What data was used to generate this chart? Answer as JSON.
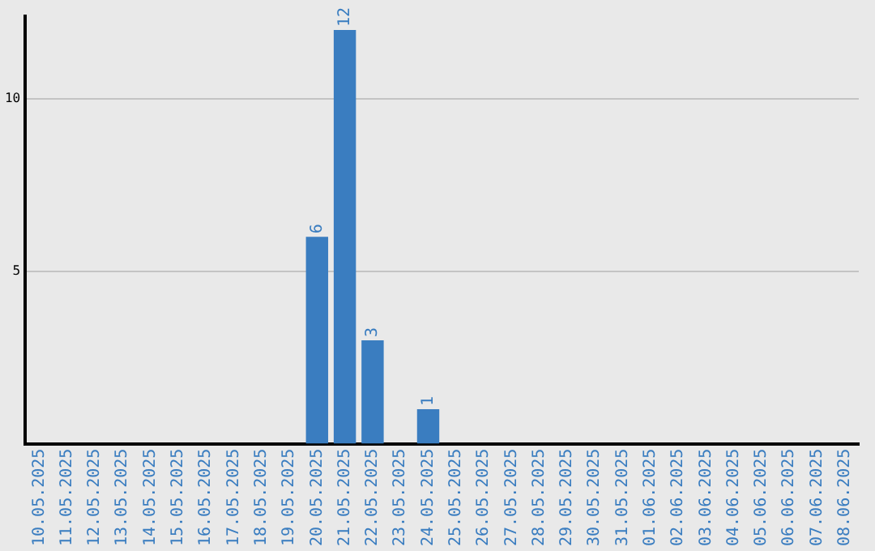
{
  "chart_data": {
    "type": "bar",
    "categories": [
      "10.05.2025",
      "11.05.2025",
      "12.05.2025",
      "13.05.2025",
      "14.05.2025",
      "15.05.2025",
      "16.05.2025",
      "17.05.2025",
      "18.05.2025",
      "19.05.2025",
      "20.05.2025",
      "21.05.2025",
      "22.05.2025",
      "23.05.2025",
      "24.05.2025",
      "25.05.2025",
      "26.05.2025",
      "27.05.2025",
      "28.05.2025",
      "29.05.2025",
      "30.05.2025",
      "31.05.2025",
      "01.06.2025",
      "02.06.2025",
      "03.06.2025",
      "04.06.2025",
      "05.06.2025",
      "06.06.2025",
      "07.06.2025",
      "08.06.2025"
    ],
    "values": [
      0,
      0,
      0,
      0,
      0,
      0,
      0,
      0,
      0,
      0,
      6,
      12,
      3,
      0,
      1,
      0,
      0,
      0,
      0,
      0,
      0,
      0,
      0,
      0,
      0,
      0,
      0,
      0,
      0,
      0
    ],
    "value_labels": [
      null,
      null,
      null,
      null,
      null,
      null,
      null,
      null,
      null,
      null,
      "6",
      "12",
      "3",
      null,
      "1",
      null,
      null,
      null,
      null,
      null,
      null,
      null,
      null,
      null,
      null,
      null,
      null,
      null,
      null,
      null
    ],
    "color": "#3a7dc0",
    "ylim": [
      0,
      12.4
    ],
    "yticks": [
      5,
      10
    ],
    "grid": "y",
    "legend": false
  }
}
